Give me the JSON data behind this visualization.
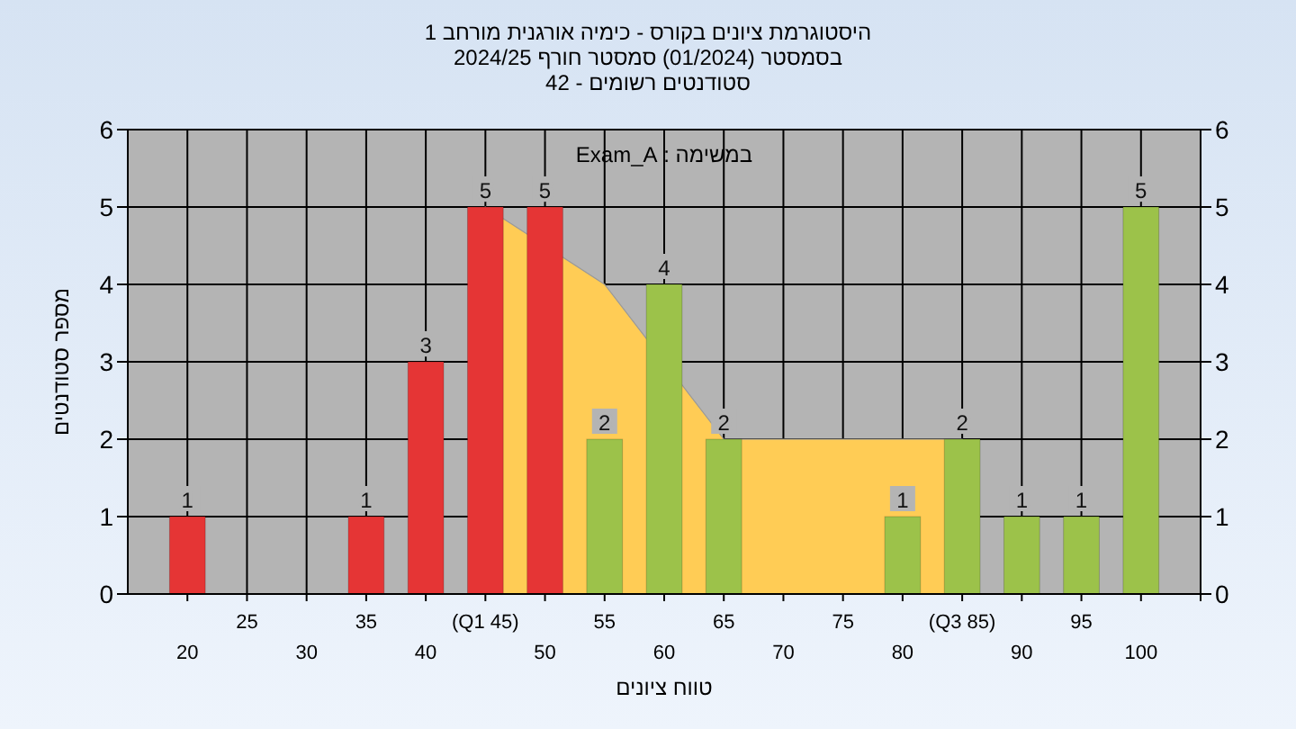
{
  "chart_data": {
    "type": "bar",
    "title": "היסטוגרמת ציונים בקורס - כימיה אורגנית מורחב 1",
    "subtitle": "בסמסטר  (01/2024)  סמסטר חורף 2024/25\nסטודנטים רשומים - 42",
    "xlabel": "טווח ציונים",
    "ylabel": "מספר סטודנטים",
    "annotations": [
      "במשימה : Exam_A"
    ],
    "categories": [
      "20",
      "25",
      "30",
      "35",
      "40",
      "(Q1 45)",
      "50",
      "55",
      "60",
      "65",
      "70",
      "75",
      "80",
      "(Q3 85)",
      "90",
      "95",
      "100"
    ],
    "series": [
      {
        "type": "area",
        "color": "#ffcc55",
        "values": [
          null,
          null,
          null,
          null,
          null,
          5,
          null,
          4,
          null,
          2,
          2,
          2,
          2,
          2,
          null,
          null,
          null
        ]
      },
      {
        "colors": [
          "#e53535",
          "#e53535",
          "#e53535",
          "#e53535",
          "#e53535",
          "#e53535",
          "#e53535",
          "#9cc24a",
          "#9cc24a",
          "#9cc24a",
          "#9cc24a",
          "#9cc24a",
          "#9cc24a",
          "#9cc24a",
          "#9cc24a",
          "#9cc24a",
          "#9cc24a"
        ],
        "values": [
          1,
          0,
          0,
          1,
          3,
          5,
          5,
          2,
          4,
          2,
          0,
          0,
          1,
          2,
          1,
          1,
          5
        ],
        "value_labels": [
          "1",
          null,
          null,
          "1",
          "3",
          "5",
          "5",
          "2",
          "4",
          "2",
          null,
          null,
          "1",
          "2",
          "1",
          "1",
          "5"
        ]
      }
    ],
    "ylim": [
      0,
      6
    ],
    "yticks": [
      0,
      1,
      2,
      3,
      4,
      5,
      6
    ],
    "y2lim": [
      0,
      6
    ],
    "y2ticks": [
      0,
      1,
      2,
      3,
      4,
      5,
      6
    ],
    "grid": true
  }
}
